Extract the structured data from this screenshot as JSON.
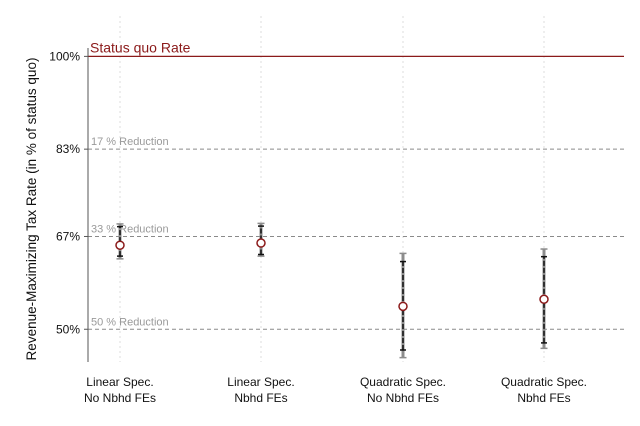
{
  "chart_data": {
    "type": "scatter",
    "ylabel": "Revenue-Maximizing Tax Rate (in % of status quo)",
    "xlabel": "",
    "ylim": [
      44,
      103
    ],
    "yticks": [
      {
        "value": 50,
        "label": "50%"
      },
      {
        "value": 67,
        "label": "67%"
      },
      {
        "value": 83,
        "label": "83%"
      },
      {
        "value": 100,
        "label": "100%"
      }
    ],
    "categories": [
      {
        "line1": "Linear Spec.",
        "line2": "No Nbhd FEs"
      },
      {
        "line1": "Linear Spec.",
        "line2": "Nbhd FEs"
      },
      {
        "line1": "Quadratic Spec.",
        "line2": "No Nbhd FEs"
      },
      {
        "line1": "Quadratic Spec.",
        "line2": "Nbhd FEs"
      }
    ],
    "points": [
      {
        "estimate": 65.4,
        "ci_inner": [
          63.4,
          68.8
        ],
        "ci_outer": [
          62.9,
          69.3
        ]
      },
      {
        "estimate": 65.8,
        "ci_inner": [
          63.7,
          68.9
        ],
        "ci_outer": [
          63.4,
          69.4
        ]
      },
      {
        "estimate": 54.2,
        "ci_inner": [
          46.2,
          62.4
        ],
        "ci_outer": [
          44.8,
          63.9
        ]
      },
      {
        "estimate": 55.5,
        "ci_inner": [
          47.5,
          63.3
        ],
        "ci_outer": [
          46.5,
          64.7
        ]
      }
    ],
    "status_quo_line": {
      "value": 100,
      "label": "Status quo Rate",
      "color": "#8b1a1a"
    },
    "reference_lines": [
      {
        "value": 83,
        "label": "17 % Reduction"
      },
      {
        "value": 67,
        "label": "33 % Reduction"
      },
      {
        "value": 50,
        "label": "50 % Reduction"
      }
    ],
    "marker_color": "#8b1a1a",
    "grid": "vertical-dotted",
    "legend": "none"
  }
}
